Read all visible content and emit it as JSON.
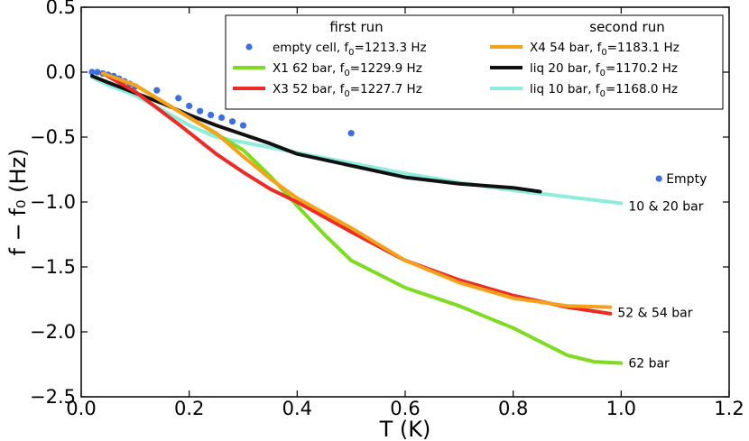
{
  "chart_data": {
    "type": "line",
    "xlabel": "T (K)",
    "ylabel": "f − f₀ (Hz)",
    "xlim": [
      0.0,
      1.2
    ],
    "ylim": [
      -2.5,
      0.5
    ],
    "xticks": [
      "0.0",
      "0.2",
      "0.4",
      "0.6",
      "0.8",
      "1.0",
      "1.2"
    ],
    "yticks": [
      "0.5",
      "0.0",
      "−0.5",
      "−1.0",
      "−1.5",
      "−2.0",
      "−2.5"
    ],
    "legend": {
      "placement": "top-right",
      "headers": {
        "first_run": "first run",
        "second_run": "second run"
      }
    },
    "series": [
      {
        "name": "empty cell",
        "legend_label": "empty cell, f",
        "f0_label": "0",
        "legend_suffix": "=1213.3 Hz",
        "run": "first",
        "kind": "scatter",
        "color": "#3b6fe0",
        "x": [
          0.02,
          0.03,
          0.04,
          0.05,
          0.06,
          0.07,
          0.08,
          0.09,
          0.1,
          0.14,
          0.18,
          0.2,
          0.22,
          0.24,
          0.26,
          0.28,
          0.3,
          0.5,
          1.07
        ],
        "y": [
          0.0,
          0.0,
          -0.01,
          -0.02,
          -0.03,
          -0.05,
          -0.07,
          -0.09,
          -0.11,
          -0.14,
          -0.2,
          -0.26,
          -0.3,
          -0.33,
          -0.35,
          -0.38,
          -0.41,
          -0.47,
          -0.82
        ]
      },
      {
        "name": "X1 62 bar",
        "legend_label": "X1 62 bar, f",
        "f0_label": "0",
        "legend_suffix": "=1229.9 Hz",
        "run": "first",
        "kind": "line",
        "color": "#7ddc1f",
        "x": [
          0.04,
          0.1,
          0.2,
          0.3,
          0.35,
          0.4,
          0.45,
          0.5,
          0.6,
          0.7,
          0.8,
          0.9,
          0.95,
          1.0
        ],
        "y": [
          -0.01,
          -0.1,
          -0.35,
          -0.6,
          -0.8,
          -1.03,
          -1.25,
          -1.45,
          -1.66,
          -1.8,
          -1.97,
          -2.18,
          -2.23,
          -2.24
        ]
      },
      {
        "name": "X3 52 bar",
        "legend_label": "X3 52 bar, f",
        "f0_label": "0",
        "legend_suffix": "=1227.7 Hz",
        "run": "first",
        "kind": "line",
        "color": "#ee2a24",
        "x": [
          0.04,
          0.1,
          0.18,
          0.25,
          0.3,
          0.35,
          0.4,
          0.5,
          0.6,
          0.7,
          0.8,
          0.9,
          0.98
        ],
        "y": [
          -0.01,
          -0.15,
          -0.4,
          -0.63,
          -0.77,
          -0.9,
          -1.0,
          -1.23,
          -1.45,
          -1.6,
          -1.72,
          -1.81,
          -1.86
        ]
      },
      {
        "name": "X4 54 bar",
        "legend_label": "X4 54 bar, f",
        "f0_label": "0",
        "legend_suffix": "=1183.1 Hz",
        "run": "second",
        "kind": "line",
        "color": "#f7a11a",
        "x": [
          0.04,
          0.1,
          0.2,
          0.25,
          0.3,
          0.35,
          0.4,
          0.5,
          0.6,
          0.7,
          0.8,
          0.9,
          0.98
        ],
        "y": [
          -0.01,
          -0.1,
          -0.35,
          -0.47,
          -0.65,
          -0.82,
          -0.97,
          -1.2,
          -1.45,
          -1.62,
          -1.74,
          -1.8,
          -1.81
        ]
      },
      {
        "name": "liq 20 bar",
        "legend_label": "liq 20 bar, f",
        "f0_label": "0",
        "legend_suffix": "=1170.2 Hz",
        "run": "second",
        "kind": "line",
        "color": "#111111",
        "x": [
          0.02,
          0.05,
          0.1,
          0.15,
          0.2,
          0.25,
          0.3,
          0.35,
          0.4,
          0.5,
          0.6,
          0.7,
          0.8,
          0.85
        ],
        "y": [
          -0.03,
          -0.08,
          -0.16,
          -0.24,
          -0.33,
          -0.41,
          -0.48,
          -0.55,
          -0.63,
          -0.72,
          -0.81,
          -0.86,
          -0.89,
          -0.92
        ]
      },
      {
        "name": "liq 10 bar",
        "legend_label": "liq 10 bar, f",
        "f0_label": "0",
        "legend_suffix": "=1168.0 Hz",
        "run": "second",
        "kind": "line",
        "color": "#8eecdc",
        "x": [
          0.02,
          0.05,
          0.1,
          0.15,
          0.2,
          0.25,
          0.3,
          0.4,
          0.5,
          0.6,
          0.7,
          0.8,
          0.9,
          1.0
        ],
        "y": [
          -0.04,
          -0.1,
          -0.18,
          -0.29,
          -0.41,
          -0.5,
          -0.54,
          -0.62,
          -0.7,
          -0.78,
          -0.85,
          -0.91,
          -0.96,
          -1.01
        ]
      }
    ],
    "annotations": [
      {
        "text": "Empty",
        "x": 1.07,
        "y": -0.82
      },
      {
        "text": "10 & 20 bar",
        "x": 1.0,
        "y": -1.03
      },
      {
        "text": "52 & 54 bar",
        "x": 0.98,
        "y": -1.85
      },
      {
        "text": "62 bar",
        "x": 1.0,
        "y": -2.24
      }
    ]
  }
}
